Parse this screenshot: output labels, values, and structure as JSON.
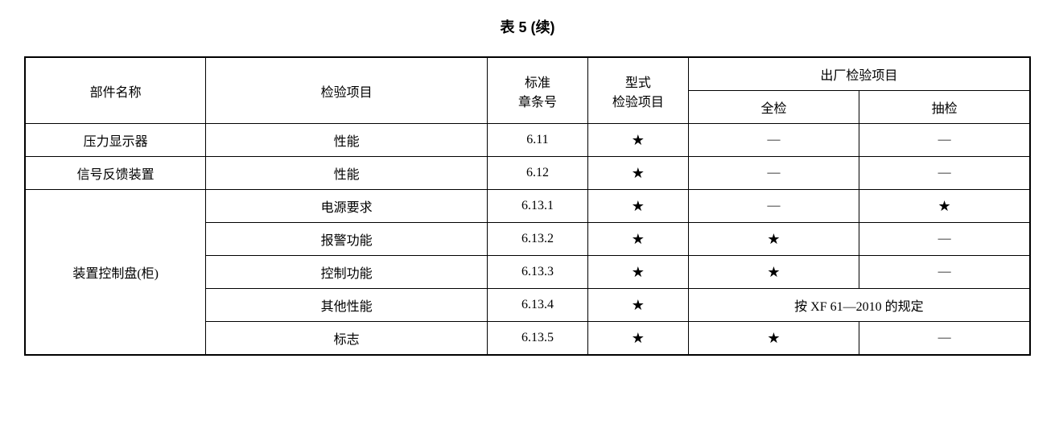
{
  "title": "表 5 (续)",
  "header": {
    "component": "部件名称",
    "item": "检验项目",
    "clause_line1": "标准",
    "clause_line2": "章条号",
    "type_line1": "型式",
    "type_line2": "检验项目",
    "factory": "出厂检验项目",
    "full": "全检",
    "spot": "抽检"
  },
  "rows": [
    {
      "component": "压力显示器",
      "item": "性能",
      "clause": "6.11",
      "type": "★",
      "full": "—",
      "spot": "—"
    },
    {
      "component": "信号反馈装置",
      "item": "性能",
      "clause": "6.12",
      "type": "★",
      "full": "—",
      "spot": "—"
    },
    {
      "component": "装置控制盘(柜)",
      "subrows": [
        {
          "item": "电源要求",
          "clause": "6.13.1",
          "type": "★",
          "full": "—",
          "spot": "★"
        },
        {
          "item": "报警功能",
          "clause": "6.13.2",
          "type": "★",
          "full": "★",
          "spot": "—"
        },
        {
          "item": "控制功能",
          "clause": "6.13.3",
          "type": "★",
          "full": "★",
          "spot": "—"
        },
        {
          "item": "其他性能",
          "clause": "6.13.4",
          "type": "★",
          "merged": "按 XF 61—2010 的规定"
        },
        {
          "item": "标志",
          "clause": "6.13.5",
          "type": "★",
          "full": "★",
          "spot": "—"
        }
      ]
    }
  ]
}
